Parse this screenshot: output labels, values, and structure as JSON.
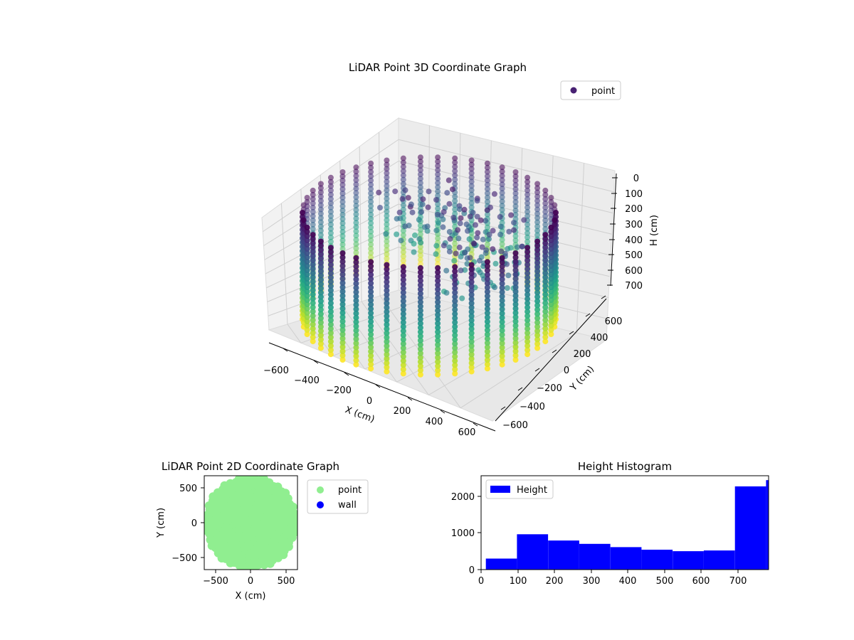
{
  "chart_data": [
    {
      "type": "scatter3d",
      "title": "LiDAR Point 3D Coordinate Graph",
      "xlabel": "X (cm)",
      "ylabel": "Y (cm)",
      "zlabel": "H (cm)",
      "x_ticks": [
        "−600",
        "−400",
        "−200",
        "0",
        "200",
        "400",
        "600"
      ],
      "y_ticks": [
        "−600",
        "−400",
        "−200",
        "0",
        "200",
        "400",
        "600"
      ],
      "z_ticks": [
        "0",
        "100",
        "200",
        "300",
        "400",
        "500",
        "600",
        "700"
      ],
      "xlim": [
        -650,
        650
      ],
      "ylim": [
        -650,
        650
      ],
      "zlim": [
        780,
        0
      ],
      "legend": {
        "label": "point",
        "loc": "upper right",
        "marker_color": "#482173"
      },
      "colormap": "viridis",
      "cylinder_radius": 650,
      "height_range": [
        0,
        780
      ],
      "color_by": "height",
      "description_shape": "cylindrical wall of points with vertical columns, plus a scattered structure inside"
    },
    {
      "type": "scatter",
      "title": "LiDAR Point 2D Coordinate Graph",
      "xlabel": "X (cm)",
      "ylabel": "Y (cm)",
      "x_ticks": [
        "−500",
        "0",
        "500"
      ],
      "y_ticks": [
        "500",
        "0",
        "−500"
      ],
      "xlim": [
        -650,
        650
      ],
      "ylim": [
        -650,
        650
      ],
      "series": [
        {
          "name": "point",
          "color": "#90ee90",
          "shape": "filled disk",
          "radius": 640
        },
        {
          "name": "wall",
          "color": "#0000ff",
          "points": []
        }
      ],
      "legend_loc": "outside right"
    },
    {
      "type": "bar",
      "title": "Height Histogram",
      "xlabel": "",
      "ylabel": "",
      "x_ticks": [
        "0",
        "100",
        "200",
        "300",
        "400",
        "500",
        "600",
        "700"
      ],
      "y_ticks": [
        "0",
        "1000",
        "2000"
      ],
      "xlim": [
        0,
        785
      ],
      "ylim": [
        0,
        2550
      ],
      "bin_edges": [
        13,
        98,
        183,
        268,
        353,
        438,
        523,
        608,
        693,
        778
      ],
      "values": [
        300,
        960,
        790,
        700,
        610,
        540,
        500,
        520,
        2260
      ],
      "extra_bar": {
        "x0": 778,
        "x1": 785,
        "value": 2430
      },
      "series_name": "Height",
      "color": "#0000ff",
      "legend_loc": "upper left"
    }
  ]
}
